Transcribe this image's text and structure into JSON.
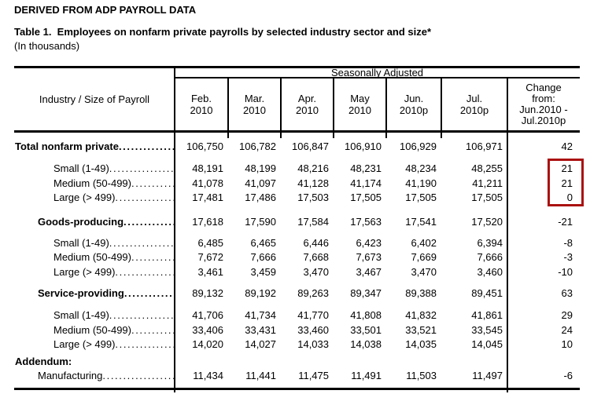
{
  "header": {
    "kicker": "DERIVED FROM ADP PAYROLL DATA",
    "title": "Table 1.  Employees on nonfarm private payrolls by selected industry sector and size*",
    "units": "(In thousands)"
  },
  "table": {
    "group_header": "Seasonally Adjusted",
    "row_header": "Industry / Size of Payroll",
    "leader_dots": "............................................................",
    "highlight_color": "#aa1111",
    "columns": [
      "Feb.\n2010",
      "Mar.\n2010",
      "Apr.\n2010",
      "May\n2010",
      "Jun.\n2010p",
      "Jul.\n2010p",
      "Change\nfrom:\nJun.2010 -\nJul.2010p"
    ],
    "rows": [
      {
        "type": "spacer",
        "h": 8
      },
      {
        "type": "row",
        "h": 20,
        "label": "Total nonfarm private",
        "bold": true,
        "indent": 1,
        "dots": true,
        "values": [
          "106,750",
          "106,782",
          "106,847",
          "106,910",
          "106,929",
          "106,971",
          "42"
        ]
      },
      {
        "type": "spacer",
        "h": 9
      },
      {
        "type": "row",
        "label": "Small (1-49)",
        "bold": false,
        "indent": 50,
        "dots": true,
        "values": [
          "48,191",
          "48,199",
          "48,216",
          "48,231",
          "48,234",
          "48,255",
          "21"
        ]
      },
      {
        "type": "row",
        "label": "Medium (50-499)",
        "bold": false,
        "indent": 50,
        "dots": true,
        "values": [
          "41,078",
          "41,097",
          "41,128",
          "41,174",
          "41,190",
          "41,211",
          "21"
        ]
      },
      {
        "type": "row",
        "label": "Large (> 499)",
        "bold": false,
        "indent": 50,
        "dots": true,
        "values": [
          "17,481",
          "17,486",
          "17,503",
          "17,505",
          "17,505",
          "17,505",
          "0"
        ]
      },
      {
        "type": "spacer",
        "h": 11
      },
      {
        "type": "row",
        "h": 19,
        "label": "Goods-producing",
        "bold": true,
        "indent": 30,
        "dots": true,
        "values": [
          "17,618",
          "17,590",
          "17,584",
          "17,563",
          "17,541",
          "17,520",
          "-21"
        ]
      },
      {
        "type": "spacer",
        "h": 9
      },
      {
        "type": "row",
        "label": "Small (1-49)",
        "bold": false,
        "indent": 50,
        "dots": true,
        "values": [
          "6,485",
          "6,465",
          "6,446",
          "6,423",
          "6,402",
          "6,394",
          "-8"
        ]
      },
      {
        "type": "row",
        "label": "Medium (50-499)",
        "bold": false,
        "indent": 50,
        "dots": true,
        "values": [
          "7,672",
          "7,666",
          "7,668",
          "7,673",
          "7,669",
          "7,666",
          "-3"
        ]
      },
      {
        "type": "row",
        "label": "Large (> 499)",
        "bold": false,
        "indent": 50,
        "dots": true,
        "values": [
          "3,461",
          "3,459",
          "3,470",
          "3,467",
          "3,470",
          "3,460",
          "-10"
        ]
      },
      {
        "type": "spacer",
        "h": 8
      },
      {
        "type": "row",
        "h": 19,
        "label": "Service-providing",
        "bold": true,
        "indent": 30,
        "dots": true,
        "values": [
          "89,132",
          "89,192",
          "89,263",
          "89,347",
          "89,388",
          "89,451",
          "63"
        ]
      },
      {
        "type": "spacer",
        "h": 10
      },
      {
        "type": "row",
        "label": "Small (1-49)",
        "bold": false,
        "indent": 50,
        "dots": true,
        "values": [
          "41,706",
          "41,734",
          "41,770",
          "41,808",
          "41,832",
          "41,861",
          "29"
        ]
      },
      {
        "type": "row",
        "label": "Medium (50-499)",
        "bold": false,
        "indent": 50,
        "dots": true,
        "values": [
          "33,406",
          "33,431",
          "33,460",
          "33,501",
          "33,521",
          "33,545",
          "24"
        ]
      },
      {
        "type": "row",
        "label": "Large (> 499)",
        "bold": false,
        "indent": 50,
        "dots": true,
        "values": [
          "14,020",
          "14,027",
          "14,033",
          "14,038",
          "14,035",
          "14,045",
          "10"
        ]
      },
      {
        "type": "spacer",
        "h": 3
      },
      {
        "type": "row",
        "h": 18,
        "label": "Addendum:",
        "bold": true,
        "indent": 1,
        "dots": false,
        "values": [
          "",
          "",
          "",
          "",
          "",
          "",
          ""
        ]
      },
      {
        "type": "row",
        "label": "Manufacturing",
        "bold": false,
        "indent": 30,
        "dots": true,
        "values": [
          "11,434",
          "11,441",
          "11,475",
          "11,491",
          "11,503",
          "11,497",
          "-6"
        ]
      }
    ]
  },
  "chart_data": {
    "type": "table",
    "title": "Table 1. Employees on nonfarm private payrolls by selected industry sector and size* (In thousands)",
    "columns": [
      "Feb. 2010",
      "Mar. 2010",
      "Apr. 2010",
      "May 2010",
      "Jun. 2010p",
      "Jul. 2010p",
      "Change from: Jun.2010 - Jul.2010p"
    ],
    "rows": [
      {
        "label": "Total nonfarm private",
        "values": [
          106750,
          106782,
          106847,
          106910,
          106929,
          106971,
          42
        ]
      },
      {
        "label": "Small (1-49)",
        "values": [
          48191,
          48199,
          48216,
          48231,
          48234,
          48255,
          21
        ]
      },
      {
        "label": "Medium (50-499)",
        "values": [
          41078,
          41097,
          41128,
          41174,
          41190,
          41211,
          21
        ]
      },
      {
        "label": "Large (> 499)",
        "values": [
          17481,
          17486,
          17503,
          17505,
          17505,
          17505,
          0
        ]
      },
      {
        "label": "Goods-producing",
        "values": [
          17618,
          17590,
          17584,
          17563,
          17541,
          17520,
          -21
        ]
      },
      {
        "label": "Small (1-49)",
        "values": [
          6485,
          6465,
          6446,
          6423,
          6402,
          6394,
          -8
        ]
      },
      {
        "label": "Medium (50-499)",
        "values": [
          7672,
          7666,
          7668,
          7673,
          7669,
          7666,
          -3
        ]
      },
      {
        "label": "Large (> 499)",
        "values": [
          3461,
          3459,
          3470,
          3467,
          3470,
          3460,
          -10
        ]
      },
      {
        "label": "Service-providing",
        "values": [
          89132,
          89192,
          89263,
          89347,
          89388,
          89451,
          63
        ]
      },
      {
        "label": "Small (1-49)",
        "values": [
          41706,
          41734,
          41770,
          41808,
          41832,
          41861,
          29
        ]
      },
      {
        "label": "Medium (50-499)",
        "values": [
          33406,
          33431,
          33460,
          33501,
          33521,
          33545,
          24
        ]
      },
      {
        "label": "Large (> 499)",
        "values": [
          14020,
          14027,
          14033,
          14038,
          14035,
          14045,
          10
        ]
      },
      {
        "label": "Manufacturing",
        "values": [
          11434,
          11441,
          11475,
          11491,
          11503,
          11497,
          -6
        ]
      }
    ]
  }
}
